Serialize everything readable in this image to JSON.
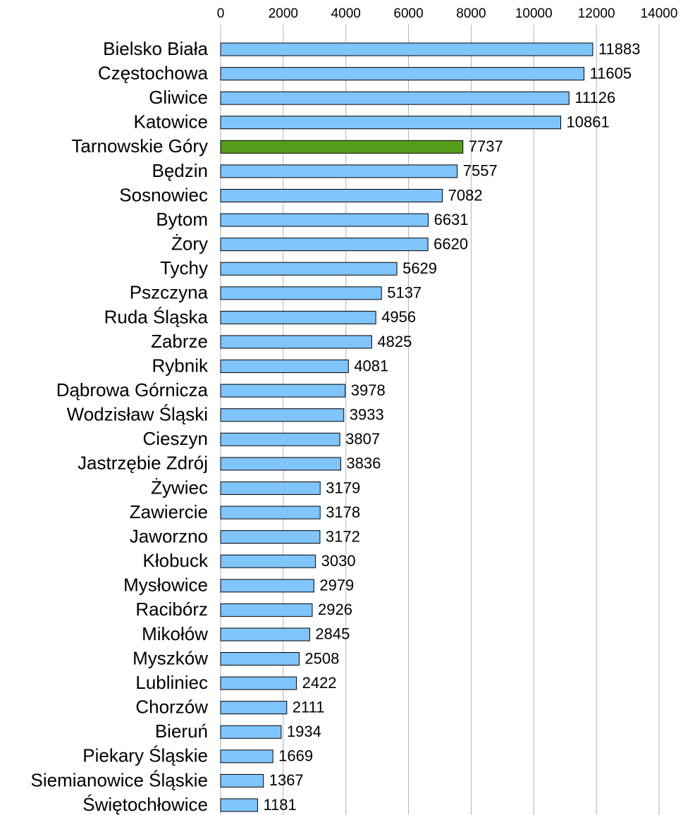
{
  "chart_data": {
    "type": "barh",
    "categories": [
      "Bielsko Biała",
      "Częstochowa",
      "Gliwice",
      "Katowice",
      "Tarnowskie Góry",
      "Będzin",
      "Sosnowiec",
      "Bytom",
      "Żory",
      "Tychy",
      "Pszczyna",
      "Ruda Śląska",
      "Zabrze",
      "Rybnik",
      "Dąbrowa Górnicza",
      "Wodzisław Śląski",
      "Cieszyn",
      "Jastrzębie Zdrój",
      "Żywiec",
      "Zawiercie",
      "Jaworzno",
      "Kłobuck",
      "Mysłowice",
      "Racibórz",
      "Mikołów",
      "Myszków",
      "Lubliniec",
      "Chorzów",
      "Bieruń",
      "Piekary Śląskie",
      "Siemianowice Śląskie",
      "Świętochłowice"
    ],
    "values": [
      11883,
      11605,
      11126,
      10861,
      7737,
      7557,
      7082,
      6631,
      6620,
      5629,
      5137,
      4956,
      4825,
      4081,
      3978,
      3933,
      3807,
      3836,
      3179,
      3178,
      3172,
      3030,
      2979,
      2926,
      2845,
      2508,
      2422,
      2111,
      1934,
      1669,
      1367,
      1181
    ],
    "colors": [
      "#80c4fc",
      "#80c4fc",
      "#80c4fc",
      "#80c4fc",
      "#579d1c",
      "#80c4fc",
      "#80c4fc",
      "#80c4fc",
      "#80c4fc",
      "#80c4fc",
      "#80c4fc",
      "#80c4fc",
      "#80c4fc",
      "#80c4fc",
      "#80c4fc",
      "#80c4fc",
      "#80c4fc",
      "#80c4fc",
      "#80c4fc",
      "#80c4fc",
      "#80c4fc",
      "#80c4fc",
      "#80c4fc",
      "#80c4fc",
      "#80c4fc",
      "#80c4fc",
      "#80c4fc",
      "#80c4fc",
      "#80c4fc",
      "#80c4fc",
      "#80c4fc",
      "#80c4fc"
    ],
    "xlim": [
      0,
      14000
    ],
    "xticks": [
      0,
      2000,
      4000,
      6000,
      8000,
      10000,
      12000,
      14000
    ],
    "grid": true
  }
}
